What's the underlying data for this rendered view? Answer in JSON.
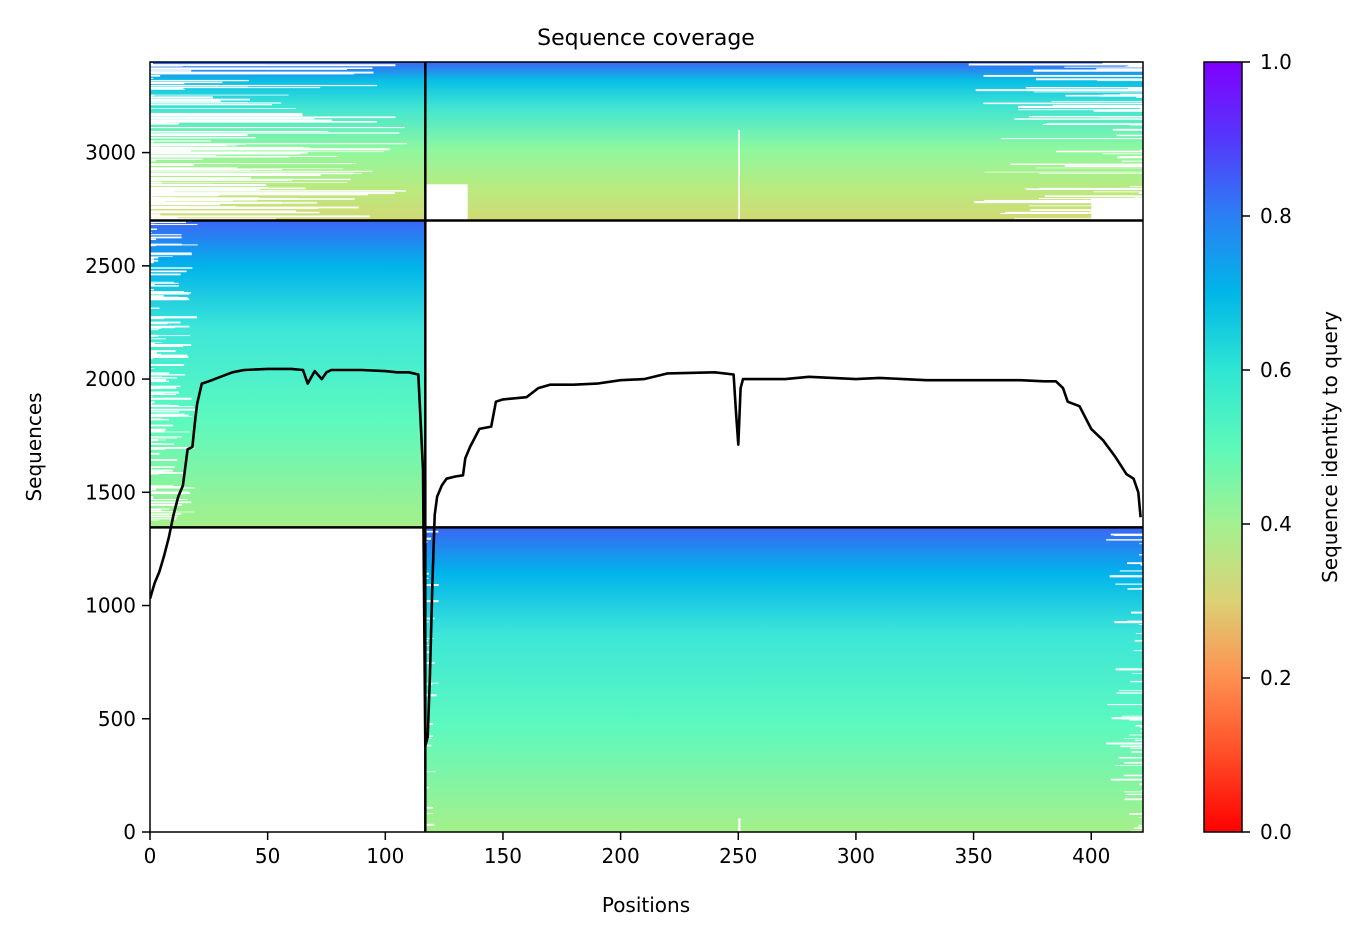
{
  "chart_data": {
    "type": "heatmap",
    "title": "Sequence coverage",
    "xlabel": "Positions",
    "ylabel": "Sequences",
    "xlim": [
      0,
      422
    ],
    "ylim": [
      0,
      3400
    ],
    "xticks": [
      0,
      50,
      100,
      150,
      200,
      250,
      300,
      350,
      400
    ],
    "yticks": [
      0,
      500,
      1000,
      1500,
      2000,
      2500,
      3000
    ],
    "colorbar": {
      "label": "Sequence identity to query",
      "range": [
        0,
        1
      ],
      "ticks": [
        0.0,
        0.2,
        0.4,
        0.6,
        0.8,
        1.0
      ],
      "tick_labels": [
        "0.0",
        "0.2",
        "0.4",
        "0.6",
        "0.8",
        "1.0"
      ],
      "colormap": "rainbow_r"
    },
    "chain_boundary_position": 117,
    "blocks": [
      {
        "name": "chain-2 alignments",
        "x": [
          117,
          422
        ],
        "y": [
          0,
          1345
        ],
        "identity_bottom": 0.42,
        "identity_top": 0.85
      },
      {
        "name": "chain-1 alignments",
        "x": [
          0,
          117
        ],
        "y": [
          1345,
          2700
        ],
        "identity_bottom": 0.42,
        "identity_top": 0.85
      },
      {
        "name": "paired alignments",
        "x": [
          0,
          422
        ],
        "y": [
          2700,
          3400
        ],
        "identity_bottom": 0.33,
        "identity_top": 0.85
      }
    ],
    "block_separators_y": [
      1345,
      2700
    ],
    "coverage_line": {
      "x": [
        0,
        2,
        4,
        6,
        8,
        10,
        12,
        14,
        16,
        18,
        19,
        20,
        22,
        25,
        30,
        35,
        40,
        50,
        60,
        65,
        67,
        70,
        73,
        75,
        77,
        80,
        90,
        100,
        105,
        110,
        114,
        116,
        117,
        118,
        119,
        120,
        121,
        122,
        124,
        126,
        130,
        133,
        134,
        136,
        140,
        145,
        147,
        150,
        160,
        165,
        170,
        180,
        190,
        200,
        210,
        220,
        240,
        248,
        249,
        250,
        251,
        252,
        255,
        260,
        270,
        280,
        290,
        300,
        310,
        320,
        330,
        340,
        350,
        360,
        370,
        380,
        385,
        388,
        390,
        395,
        400,
        405,
        410,
        415,
        418,
        420,
        421
      ],
      "y": [
        1030,
        1100,
        1150,
        1220,
        1300,
        1400,
        1480,
        1530,
        1690,
        1700,
        1800,
        1890,
        1980,
        1990,
        2010,
        2030,
        2040,
        2045,
        2045,
        2040,
        1980,
        2035,
        2000,
        2030,
        2040,
        2040,
        2040,
        2035,
        2030,
        2030,
        2020,
        1600,
        380,
        420,
        700,
        1100,
        1400,
        1480,
        1530,
        1560,
        1570,
        1575,
        1650,
        1700,
        1780,
        1790,
        1900,
        1910,
        1920,
        1960,
        1975,
        1975,
        1980,
        1995,
        2000,
        2025,
        2030,
        2020,
        1860,
        1710,
        1960,
        2000,
        2000,
        2000,
        2000,
        2010,
        2005,
        2000,
        2005,
        2000,
        1995,
        1995,
        1995,
        1995,
        1995,
        1990,
        1990,
        1960,
        1900,
        1880,
        1780,
        1730,
        1660,
        1580,
        1560,
        1500,
        1390
      ]
    }
  }
}
